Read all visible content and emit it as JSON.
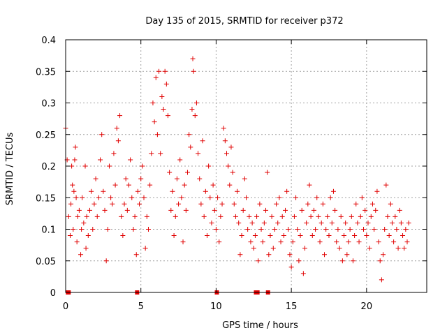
{
  "chart_data": {
    "type": "scatter",
    "title": "Day 135 of 2015, SRMTID for receiver p372",
    "xlabel": "GPS time / hours",
    "ylabel": "SRMTID / TECUs",
    "xlim": [
      0,
      24
    ],
    "ylim": [
      0,
      0.4
    ],
    "xticks": [
      0,
      5,
      10,
      15,
      20
    ],
    "xtick_labels": [
      "0",
      "5",
      "10",
      "15",
      "20"
    ],
    "yticks": [
      0,
      0.05,
      0.1,
      0.15,
      0.2,
      0.25,
      0.3,
      0.35,
      0.4
    ],
    "ytick_labels": [
      "0",
      "0.05",
      "0.1",
      "0.15",
      "0.2",
      "0.25",
      "0.3",
      "0.35",
      "0.4"
    ],
    "grid": true,
    "marker": "+",
    "color": "#e00000",
    "zero_points_x": [
      0.15,
      0.2,
      4.75,
      10.05,
      12.65,
      12.75,
      13.45
    ],
    "series": [
      {
        "name": "SRMTID",
        "points": [
          [
            0.0,
            0.26
          ],
          [
            0.1,
            0.21
          ],
          [
            0.2,
            0.12
          ],
          [
            0.3,
            0.09
          ],
          [
            0.35,
            0.14
          ],
          [
            0.4,
            0.2
          ],
          [
            0.45,
            0.17
          ],
          [
            0.5,
            0.1
          ],
          [
            0.55,
            0.16
          ],
          [
            0.6,
            0.21
          ],
          [
            0.65,
            0.23
          ],
          [
            0.7,
            0.15
          ],
          [
            0.75,
            0.08
          ],
          [
            0.8,
            0.12
          ],
          [
            0.9,
            0.13
          ],
          [
            1.0,
            0.06
          ],
          [
            1.05,
            0.1
          ],
          [
            1.1,
            0.15
          ],
          [
            1.2,
            0.11
          ],
          [
            1.3,
            0.2
          ],
          [
            1.35,
            0.07
          ],
          [
            1.4,
            0.12
          ],
          [
            1.5,
            0.09
          ],
          [
            1.6,
            0.13
          ],
          [
            1.7,
            0.16
          ],
          [
            1.8,
            0.1
          ],
          [
            1.9,
            0.14
          ],
          [
            2.0,
            0.18
          ],
          [
            2.1,
            0.12
          ],
          [
            2.2,
            0.15
          ],
          [
            2.3,
            0.21
          ],
          [
            2.4,
            0.25
          ],
          [
            2.5,
            0.16
          ],
          [
            2.6,
            0.13
          ],
          [
            2.7,
            0.05
          ],
          [
            2.8,
            0.1
          ],
          [
            2.9,
            0.2
          ],
          [
            3.0,
            0.15
          ],
          [
            3.1,
            0.14
          ],
          [
            3.2,
            0.22
          ],
          [
            3.3,
            0.17
          ],
          [
            3.4,
            0.26
          ],
          [
            3.5,
            0.24
          ],
          [
            3.6,
            0.28
          ],
          [
            3.7,
            0.12
          ],
          [
            3.8,
            0.09
          ],
          [
            3.9,
            0.14
          ],
          [
            4.0,
            0.18
          ],
          [
            4.1,
            0.13
          ],
          [
            4.2,
            0.17
          ],
          [
            4.3,
            0.21
          ],
          [
            4.4,
            0.15
          ],
          [
            4.5,
            0.1
          ],
          [
            4.6,
            0.12
          ],
          [
            4.7,
            0.06
          ],
          [
            4.8,
            0.16
          ],
          [
            4.9,
            0.14
          ],
          [
            5.0,
            0.18
          ],
          [
            5.1,
            0.2
          ],
          [
            5.2,
            0.15
          ],
          [
            5.3,
            0.07
          ],
          [
            5.4,
            0.12
          ],
          [
            5.5,
            0.1
          ],
          [
            5.6,
            0.17
          ],
          [
            5.7,
            0.22
          ],
          [
            5.8,
            0.3
          ],
          [
            5.9,
            0.27
          ],
          [
            6.0,
            0.34
          ],
          [
            6.1,
            0.25
          ],
          [
            6.2,
            0.35
          ],
          [
            6.3,
            0.22
          ],
          [
            6.4,
            0.31
          ],
          [
            6.5,
            0.29
          ],
          [
            6.6,
            0.35
          ],
          [
            6.7,
            0.33
          ],
          [
            6.8,
            0.28
          ],
          [
            6.9,
            0.19
          ],
          [
            7.0,
            0.13
          ],
          [
            7.1,
            0.16
          ],
          [
            7.2,
            0.09
          ],
          [
            7.3,
            0.12
          ],
          [
            7.4,
            0.18
          ],
          [
            7.5,
            0.14
          ],
          [
            7.6,
            0.21
          ],
          [
            7.7,
            0.15
          ],
          [
            7.8,
            0.08
          ],
          [
            7.9,
            0.17
          ],
          [
            8.0,
            0.13
          ],
          [
            8.1,
            0.19
          ],
          [
            8.2,
            0.25
          ],
          [
            8.3,
            0.23
          ],
          [
            8.4,
            0.29
          ],
          [
            8.45,
            0.37
          ],
          [
            8.5,
            0.35
          ],
          [
            8.6,
            0.28
          ],
          [
            8.7,
            0.3
          ],
          [
            8.8,
            0.22
          ],
          [
            8.9,
            0.18
          ],
          [
            9.0,
            0.14
          ],
          [
            9.1,
            0.24
          ],
          [
            9.2,
            0.12
          ],
          [
            9.3,
            0.16
          ],
          [
            9.4,
            0.09
          ],
          [
            9.5,
            0.2
          ],
          [
            9.6,
            0.15
          ],
          [
            9.7,
            0.11
          ],
          [
            9.8,
            0.17
          ],
          [
            9.9,
            0.13
          ],
          [
            10.0,
            0.1
          ],
          [
            10.1,
            0.15
          ],
          [
            10.2,
            0.08
          ],
          [
            10.3,
            0.12
          ],
          [
            10.4,
            0.14
          ],
          [
            10.5,
            0.26
          ],
          [
            10.6,
            0.24
          ],
          [
            10.7,
            0.22
          ],
          [
            10.8,
            0.2
          ],
          [
            10.9,
            0.17
          ],
          [
            11.0,
            0.23
          ],
          [
            11.1,
            0.19
          ],
          [
            11.2,
            0.14
          ],
          [
            11.3,
            0.12
          ],
          [
            11.4,
            0.16
          ],
          [
            11.5,
            0.11
          ],
          [
            11.6,
            0.06
          ],
          [
            11.7,
            0.09
          ],
          [
            11.8,
            0.13
          ],
          [
            11.9,
            0.18
          ],
          [
            12.0,
            0.15
          ],
          [
            12.1,
            0.1
          ],
          [
            12.2,
            0.12
          ],
          [
            12.3,
            0.08
          ],
          [
            12.4,
            0.11
          ],
          [
            12.5,
            0.07
          ],
          [
            12.6,
            0.09
          ],
          [
            12.7,
            0.12
          ],
          [
            12.8,
            0.05
          ],
          [
            12.9,
            0.14
          ],
          [
            13.0,
            0.1
          ],
          [
            13.1,
            0.08
          ],
          [
            13.2,
            0.11
          ],
          [
            13.3,
            0.13
          ],
          [
            13.4,
            0.19
          ],
          [
            13.5,
            0.06
          ],
          [
            13.6,
            0.09
          ],
          [
            13.7,
            0.12
          ],
          [
            13.8,
            0.07
          ],
          [
            13.9,
            0.1
          ],
          [
            14.0,
            0.14
          ],
          [
            14.1,
            0.11
          ],
          [
            14.2,
            0.15
          ],
          [
            14.3,
            0.08
          ],
          [
            14.4,
            0.12
          ],
          [
            14.5,
            0.09
          ],
          [
            14.6,
            0.13
          ],
          [
            14.7,
            0.16
          ],
          [
            14.8,
            0.1
          ],
          [
            14.9,
            0.06
          ],
          [
            15.0,
            0.04
          ],
          [
            15.1,
            0.08
          ],
          [
            15.2,
            0.12
          ],
          [
            15.3,
            0.15
          ],
          [
            15.4,
            0.1
          ],
          [
            15.5,
            0.05
          ],
          [
            15.6,
            0.09
          ],
          [
            15.7,
            0.13
          ],
          [
            15.8,
            0.03
          ],
          [
            15.9,
            0.07
          ],
          [
            16.0,
            0.11
          ],
          [
            16.1,
            0.14
          ],
          [
            16.2,
            0.17
          ],
          [
            16.3,
            0.12
          ],
          [
            16.4,
            0.09
          ],
          [
            16.5,
            0.13
          ],
          [
            16.6,
            0.1
          ],
          [
            16.7,
            0.15
          ],
          [
            16.8,
            0.12
          ],
          [
            16.9,
            0.08
          ],
          [
            17.0,
            0.11
          ],
          [
            17.1,
            0.14
          ],
          [
            17.2,
            0.06
          ],
          [
            17.3,
            0.1
          ],
          [
            17.4,
            0.12
          ],
          [
            17.5,
            0.09
          ],
          [
            17.6,
            0.15
          ],
          [
            17.7,
            0.11
          ],
          [
            17.8,
            0.16
          ],
          [
            17.9,
            0.13
          ],
          [
            18.0,
            0.08
          ],
          [
            18.1,
            0.1
          ],
          [
            18.2,
            0.07
          ],
          [
            18.3,
            0.12
          ],
          [
            18.4,
            0.05
          ],
          [
            18.5,
            0.09
          ],
          [
            18.6,
            0.11
          ],
          [
            18.7,
            0.06
          ],
          [
            18.8,
            0.08
          ],
          [
            18.9,
            0.1
          ],
          [
            19.0,
            0.12
          ],
          [
            19.1,
            0.05
          ],
          [
            19.2,
            0.09
          ],
          [
            19.3,
            0.14
          ],
          [
            19.4,
            0.11
          ],
          [
            19.5,
            0.08
          ],
          [
            19.6,
            0.12
          ],
          [
            19.7,
            0.15
          ],
          [
            19.8,
            0.1
          ],
          [
            19.9,
            0.13
          ],
          [
            20.0,
            0.09
          ],
          [
            20.1,
            0.11
          ],
          [
            20.2,
            0.07
          ],
          [
            20.3,
            0.12
          ],
          [
            20.4,
            0.14
          ],
          [
            20.5,
            0.1
          ],
          [
            20.6,
            0.13
          ],
          [
            20.7,
            0.16
          ],
          [
            20.8,
            0.08
          ],
          [
            20.9,
            0.05
          ],
          [
            21.0,
            0.02
          ],
          [
            21.1,
            0.06
          ],
          [
            21.2,
            0.1
          ],
          [
            21.3,
            0.17
          ],
          [
            21.4,
            0.12
          ],
          [
            21.5,
            0.09
          ],
          [
            21.6,
            0.14
          ],
          [
            21.7,
            0.11
          ],
          [
            21.8,
            0.08
          ],
          [
            21.9,
            0.12
          ],
          [
            22.0,
            0.1
          ],
          [
            22.1,
            0.07
          ],
          [
            22.2,
            0.13
          ],
          [
            22.3,
            0.11
          ],
          [
            22.4,
            0.09
          ],
          [
            22.5,
            0.07
          ],
          [
            22.6,
            0.1
          ],
          [
            22.7,
            0.08
          ],
          [
            22.8,
            0.11
          ]
        ]
      }
    ]
  }
}
